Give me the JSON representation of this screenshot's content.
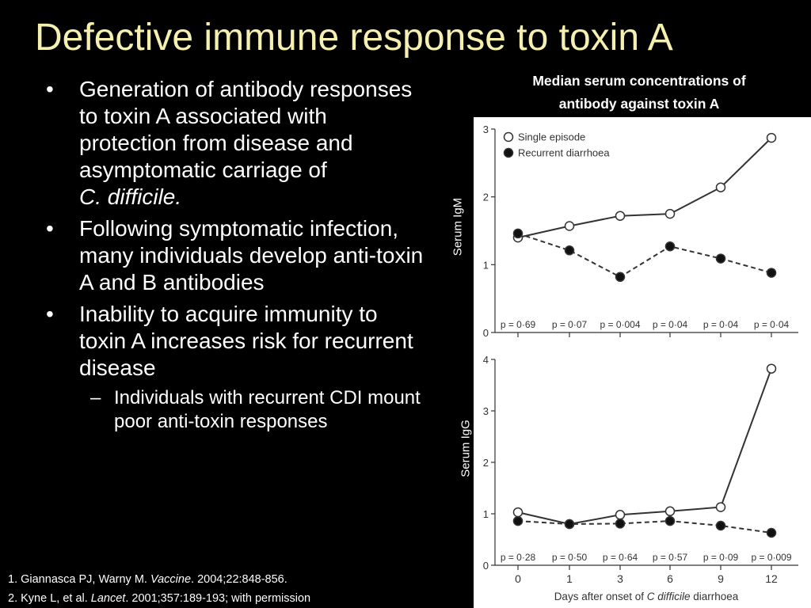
{
  "slide": {
    "title": "Defective immune response to toxin A",
    "bullets": [
      {
        "text": "Generation of antibody responses to toxin A associated with protection from disease and asymptomatic carriage of",
        "italic": "C. difficile."
      },
      {
        "text": "Following symptomatic infection, many individuals develop anti-toxin A and B antibodies"
      },
      {
        "text": "Inability to acquire immunity to toxin A increases risk for recurrent disease"
      }
    ],
    "sub_bullets": [
      {
        "text": "Individuals with recurrent CDI mount poor anti-toxin responses"
      }
    ],
    "references": [
      {
        "pre": "1. Giannasca PJ, Warny M. ",
        "journal": "Vaccine",
        "post": ". 2004;22:848-856."
      },
      {
        "pre": "2. Kyne L, et al. ",
        "journal": "Lancet",
        "post": ". 2001;357:189-193; with permission"
      }
    ],
    "chart_heading_line1": "Median serum concentrations of",
    "chart_heading_line2": "antibody against toxin A",
    "bullet_glyph": "•",
    "dash_glyph": "–"
  },
  "chart_data": [
    {
      "type": "line",
      "ylabel": "Serum IgM",
      "x": [
        "0",
        "1",
        "3",
        "6",
        "9",
        "12"
      ],
      "ylim": [
        0,
        3
      ],
      "yticks": [
        "0",
        "1",
        "2",
        "3"
      ],
      "series": [
        {
          "name": "Single episode",
          "style": "open-circle-solid",
          "values": [
            1.4,
            1.57,
            1.72,
            1.75,
            2.14,
            2.87
          ]
        },
        {
          "name": "Recurrent diarrhoea",
          "style": "filled-circle-dashed",
          "values": [
            1.46,
            1.21,
            0.82,
            1.27,
            1.09,
            0.88
          ]
        }
      ],
      "pvalues": [
        "p = 0·69",
        "p = 0·07",
        "p = 0·004",
        "p = 0·04",
        "p = 0·04",
        "p = 0·04"
      ],
      "legend": "top-left"
    },
    {
      "type": "line",
      "ylabel": "Serum IgG",
      "x": [
        "0",
        "1",
        "3",
        "6",
        "9",
        "12"
      ],
      "xlabel_pre": "Days after onset of ",
      "xlabel_italic": "C difficile",
      "xlabel_post": " diarrhoea",
      "ylim": [
        0,
        4
      ],
      "yticks": [
        "0",
        "1",
        "2",
        "3",
        "4"
      ],
      "series": [
        {
          "name": "Single episode",
          "style": "open-circle-solid",
          "values": [
            1.03,
            0.8,
            0.98,
            1.05,
            1.13,
            3.82
          ]
        },
        {
          "name": "Recurrent diarrhoea",
          "style": "filled-circle-dashed",
          "values": [
            0.86,
            0.8,
            0.81,
            0.86,
            0.77,
            0.63
          ]
        }
      ],
      "pvalues": [
        "p = 0·28",
        "p = 0·50",
        "p = 0·64",
        "p = 0·57",
        "p = 0·09",
        "p = 0·009"
      ]
    }
  ],
  "colors": {
    "background": "#000000",
    "title": "#f5f0b0",
    "text": "#ffffff",
    "chart_bg": "#ffffff",
    "chart_ink": "#333333"
  }
}
